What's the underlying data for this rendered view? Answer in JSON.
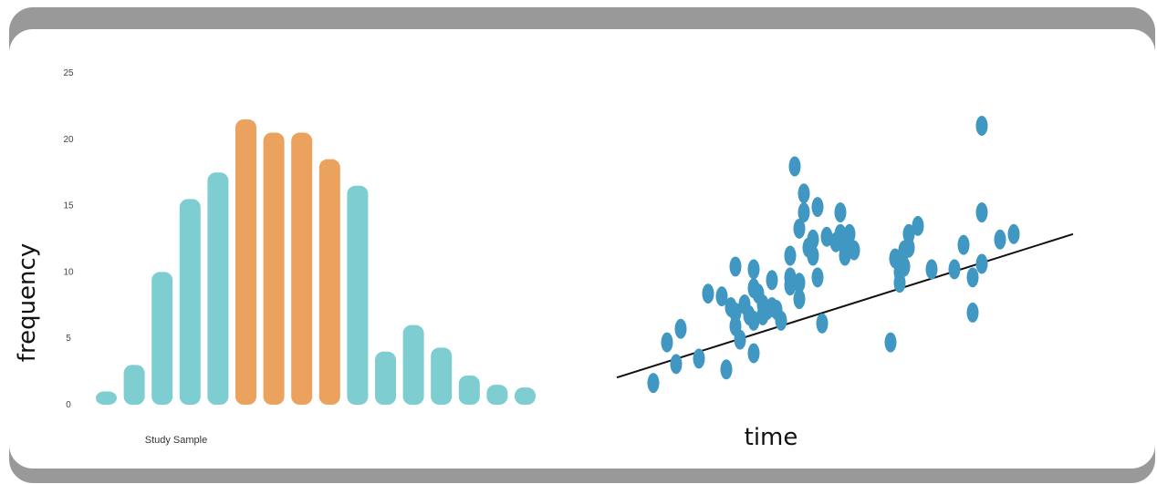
{
  "colors": {
    "frame": "#999999",
    "teal": "#7dcdd1",
    "orange": "#eba25e",
    "scatter": "#3f97c2",
    "trendline": "#111111"
  },
  "chart_data": [
    {
      "type": "bar",
      "ylabel": "frequency",
      "xlabel": "Study Sample",
      "yticks": [
        "0",
        "5",
        "10",
        "15",
        "20",
        "25"
      ],
      "ylim": [
        0,
        25
      ],
      "grid": false,
      "values": [
        1,
        3,
        10,
        15.5,
        17.5,
        21.5,
        20.5,
        20.5,
        18.5,
        16.5,
        4,
        6,
        4.3,
        2.2,
        1.5,
        1.3
      ],
      "highlighted": [
        false,
        false,
        false,
        false,
        false,
        true,
        true,
        true,
        true,
        false,
        false,
        false,
        false,
        false,
        false,
        false
      ]
    },
    {
      "type": "scatter",
      "xlabel": "time",
      "ylabel": "",
      "xlim": [
        0,
        100
      ],
      "ylim": [
        0,
        100
      ],
      "grid": false,
      "trendline": {
        "x": [
          0,
          100
        ],
        "y": [
          7,
          60
        ]
      },
      "points": [
        [
          8,
          5
        ],
        [
          11,
          20
        ],
        [
          14,
          25
        ],
        [
          13,
          12
        ],
        [
          18,
          14
        ],
        [
          20,
          38
        ],
        [
          23,
          37
        ],
        [
          24,
          10
        ],
        [
          25,
          33
        ],
        [
          26,
          48
        ],
        [
          26,
          31
        ],
        [
          26,
          26
        ],
        [
          27,
          21
        ],
        [
          28,
          34
        ],
        [
          29,
          30
        ],
        [
          30,
          47
        ],
        [
          30,
          28
        ],
        [
          30,
          40
        ],
        [
          30,
          16
        ],
        [
          31,
          38
        ],
        [
          32,
          34
        ],
        [
          32,
          30
        ],
        [
          33,
          32
        ],
        [
          34,
          43
        ],
        [
          34,
          33
        ],
        [
          35,
          32
        ],
        [
          36,
          28
        ],
        [
          38,
          52
        ],
        [
          38,
          44
        ],
        [
          38,
          41
        ],
        [
          39,
          85
        ],
        [
          40,
          62
        ],
        [
          40,
          36
        ],
        [
          40,
          42
        ],
        [
          41,
          75
        ],
        [
          41,
          68
        ],
        [
          42,
          55
        ],
        [
          43,
          58
        ],
        [
          43,
          52
        ],
        [
          44,
          70
        ],
        [
          44,
          44
        ],
        [
          45,
          27
        ],
        [
          46,
          59
        ],
        [
          48,
          57
        ],
        [
          49,
          60
        ],
        [
          49,
          68
        ],
        [
          50,
          52
        ],
        [
          50,
          55
        ],
        [
          51,
          60
        ],
        [
          52,
          54
        ],
        [
          60,
          20
        ],
        [
          61,
          51
        ],
        [
          62,
          42
        ],
        [
          62,
          46
        ],
        [
          63,
          54
        ],
        [
          63,
          48
        ],
        [
          64,
          60
        ],
        [
          64,
          55
        ],
        [
          66,
          63
        ],
        [
          69,
          47
        ],
        [
          74,
          47
        ],
        [
          76,
          56
        ],
        [
          78,
          31
        ],
        [
          78,
          44
        ],
        [
          80,
          68
        ],
        [
          80,
          49
        ],
        [
          80,
          100
        ],
        [
          84,
          58
        ],
        [
          87,
          60
        ]
      ]
    }
  ]
}
